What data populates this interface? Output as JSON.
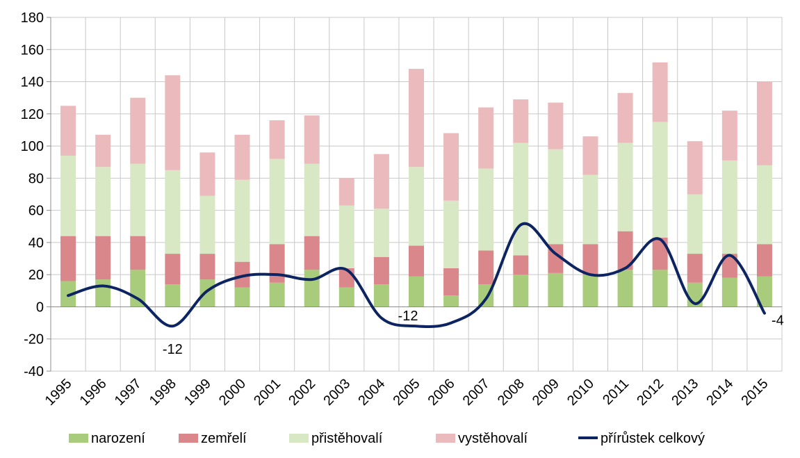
{
  "chart_data": {
    "type": "bar",
    "stacked": true,
    "categories": [
      "1995",
      "1996",
      "1997",
      "1998",
      "1999",
      "2000",
      "2001",
      "2002",
      "2003",
      "2004",
      "2005",
      "2006",
      "2007",
      "2008",
      "2009",
      "2010",
      "2011",
      "2012",
      "2013",
      "2014",
      "2015"
    ],
    "ylim": [
      -40,
      180
    ],
    "yticks": [
      -40,
      -20,
      0,
      20,
      40,
      60,
      80,
      100,
      120,
      140,
      160,
      180
    ],
    "grid": true,
    "legend_position": "bottom",
    "series": [
      {
        "name": "narození",
        "kind": "bar",
        "color": "#a9cb7c",
        "values": [
          16,
          17,
          23,
          14,
          17,
          12,
          15,
          23,
          12,
          14,
          19,
          7,
          14,
          20,
          21,
          20,
          23,
          23,
          15,
          18,
          19
        ]
      },
      {
        "name": "zemřelí",
        "kind": "bar",
        "color": "#d9878a",
        "values": [
          28,
          27,
          21,
          19,
          16,
          16,
          24,
          21,
          12,
          17,
          19,
          17,
          21,
          12,
          18,
          19,
          24,
          20,
          18,
          15,
          20
        ]
      },
      {
        "name": "přistěhovalí",
        "kind": "bar",
        "color": "#d9e8c4",
        "values": [
          50,
          43,
          45,
          52,
          36,
          51,
          53,
          45,
          39,
          30,
          49,
          42,
          51,
          70,
          59,
          43,
          55,
          72,
          37,
          58,
          49
        ]
      },
      {
        "name": "vystěhovalí",
        "kind": "bar",
        "color": "#ebbabc",
        "values": [
          31,
          20,
          41,
          59,
          27,
          28,
          24,
          30,
          17,
          34,
          61,
          42,
          38,
          27,
          29,
          24,
          31,
          37,
          33,
          31,
          52
        ]
      },
      {
        "name": "přírůstek celkový",
        "kind": "line",
        "color": "#0d2463",
        "values": [
          7,
          13,
          5,
          -12,
          10,
          19,
          20,
          17,
          23,
          -7,
          -12,
          -10,
          5,
          51,
          33,
          20,
          24,
          42,
          2,
          32,
          -4
        ]
      }
    ],
    "data_labels": [
      {
        "index": 3,
        "text": "-12"
      },
      {
        "index": 10,
        "text": "-12"
      },
      {
        "index": 20,
        "text": "-4"
      }
    ]
  }
}
